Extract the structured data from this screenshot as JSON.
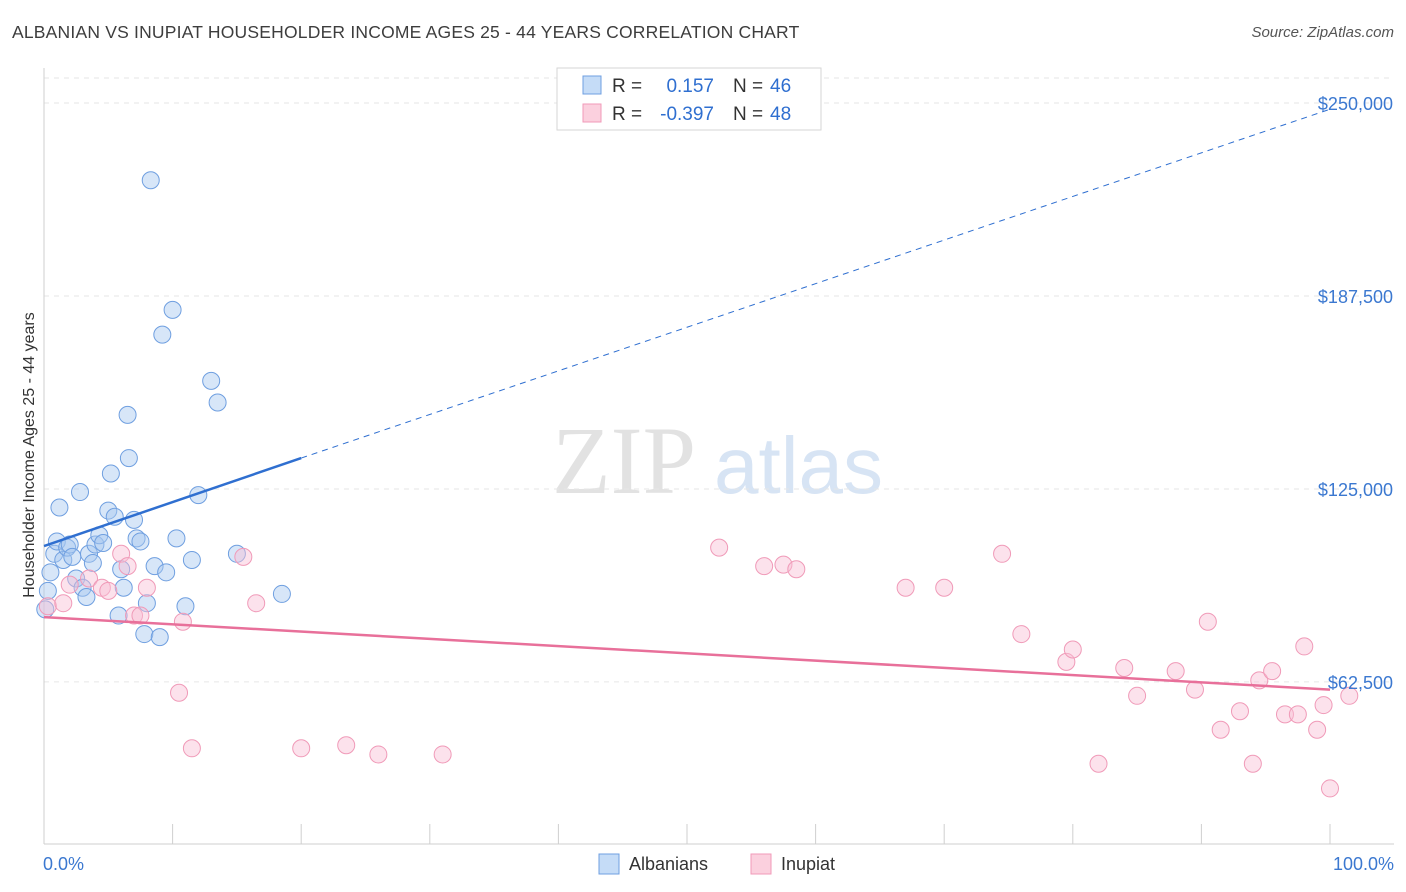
{
  "title": "ALBANIAN VS INUPIAT HOUSEHOLDER INCOME AGES 25 - 44 YEARS CORRELATION CHART",
  "source": "Source: ZipAtlas.com",
  "watermark": {
    "zip": "ZIP",
    "atlas": "atlas"
  },
  "chart_data": {
    "type": "scatter",
    "title": "ALBANIAN VS INUPIAT HOUSEHOLDER INCOME AGES 25 - 44 YEARS CORRELATION CHART",
    "xlabel": "",
    "ylabel": "Householder Income Ages 25 - 44 years",
    "xlim": [
      0,
      100
    ],
    "ylim": [
      10000,
      262000
    ],
    "x_tick_labels": [
      "0.0%",
      "100.0%"
    ],
    "y_ticks": [
      62500,
      125000,
      187500,
      250000
    ],
    "y_tick_labels": [
      "$62,500",
      "$125,000",
      "$187,500",
      "$250,000"
    ],
    "grid": "horizontal dashed",
    "legend_placement": "bottom-center",
    "stats": [
      {
        "r_label": "R =",
        "r": "0.157",
        "n_label": "N =",
        "n": "46"
      },
      {
        "r_label": "R =",
        "r": "-0.397",
        "n_label": "N =",
        "n": "48"
      }
    ],
    "series": [
      {
        "name": "Albanians",
        "color": "#6f9fe0",
        "line_color": "#2f6fd0",
        "trend": {
          "x0": 0,
          "y0": 106500,
          "x1": 20,
          "y1": 135000,
          "x_end": 100,
          "y_end": 248000
        },
        "points": [
          [
            0.3,
            92000
          ],
          [
            0.5,
            98000
          ],
          [
            0.8,
            104000
          ],
          [
            1.0,
            108000
          ],
          [
            1.2,
            119000
          ],
          [
            1.5,
            102000
          ],
          [
            1.8,
            106000
          ],
          [
            2.0,
            107000
          ],
          [
            2.2,
            103000
          ],
          [
            2.5,
            96000
          ],
          [
            2.8,
            124000
          ],
          [
            3.0,
            93000
          ],
          [
            3.3,
            90000
          ],
          [
            3.5,
            104000
          ],
          [
            3.8,
            101000
          ],
          [
            4.0,
            107000
          ],
          [
            4.3,
            110000
          ],
          [
            4.6,
            107500
          ],
          [
            5.0,
            118000
          ],
          [
            5.2,
            130000
          ],
          [
            5.5,
            116000
          ],
          [
            5.8,
            84000
          ],
          [
            6.0,
            99000
          ],
          [
            6.2,
            93000
          ],
          [
            6.5,
            149000
          ],
          [
            6.6,
            135000
          ],
          [
            7.0,
            115000
          ],
          [
            7.2,
            109000
          ],
          [
            7.5,
            108000
          ],
          [
            7.8,
            78000
          ],
          [
            8.0,
            88000
          ],
          [
            8.3,
            225000
          ],
          [
            8.6,
            100000
          ],
          [
            9.0,
            77000
          ],
          [
            9.2,
            175000
          ],
          [
            9.5,
            98000
          ],
          [
            10.0,
            183000
          ],
          [
            10.3,
            109000
          ],
          [
            11.0,
            87000
          ],
          [
            11.5,
            102000
          ],
          [
            12.0,
            123000
          ],
          [
            13.0,
            160000
          ],
          [
            13.5,
            153000
          ],
          [
            15.0,
            104000
          ],
          [
            18.5,
            91000
          ],
          [
            0.1,
            86000
          ]
        ]
      },
      {
        "name": "Inupiat",
        "color": "#f09ab8",
        "line_color": "#e8709a",
        "trend": {
          "x0": 0,
          "y0": 83500,
          "x1": 100,
          "y1": 60000
        },
        "points": [
          [
            0.3,
            87000
          ],
          [
            1.5,
            88000
          ],
          [
            2.0,
            94000
          ],
          [
            3.5,
            96000
          ],
          [
            4.5,
            93000
          ],
          [
            5.0,
            92000
          ],
          [
            6.0,
            104000
          ],
          [
            6.5,
            100000
          ],
          [
            7.0,
            84000
          ],
          [
            7.5,
            84000
          ],
          [
            8.0,
            93000
          ],
          [
            10.5,
            59000
          ],
          [
            10.8,
            82000
          ],
          [
            11.5,
            41000
          ],
          [
            15.5,
            103000
          ],
          [
            16.5,
            88000
          ],
          [
            20.0,
            41000
          ],
          [
            23.5,
            42000
          ],
          [
            26.0,
            39000
          ],
          [
            31.0,
            39000
          ],
          [
            52.5,
            106000
          ],
          [
            56.0,
            100000
          ],
          [
            57.5,
            100500
          ],
          [
            58.5,
            99000
          ],
          [
            67.0,
            93000
          ],
          [
            70.0,
            93000
          ],
          [
            74.5,
            104000
          ],
          [
            76.0,
            78000
          ],
          [
            79.5,
            69000
          ],
          [
            80.0,
            73000
          ],
          [
            82.0,
            36000
          ],
          [
            84.0,
            67000
          ],
          [
            85.0,
            58000
          ],
          [
            88.0,
            66000
          ],
          [
            89.5,
            60000
          ],
          [
            90.5,
            82000
          ],
          [
            91.5,
            47000
          ],
          [
            93.0,
            53000
          ],
          [
            94.0,
            36000
          ],
          [
            94.5,
            63000
          ],
          [
            95.5,
            66000
          ],
          [
            96.5,
            52000
          ],
          [
            97.5,
            52000
          ],
          [
            98.0,
            74000
          ],
          [
            99.0,
            47000
          ],
          [
            99.5,
            55000
          ],
          [
            100.0,
            28000
          ],
          [
            101.5,
            58000
          ]
        ]
      }
    ]
  }
}
